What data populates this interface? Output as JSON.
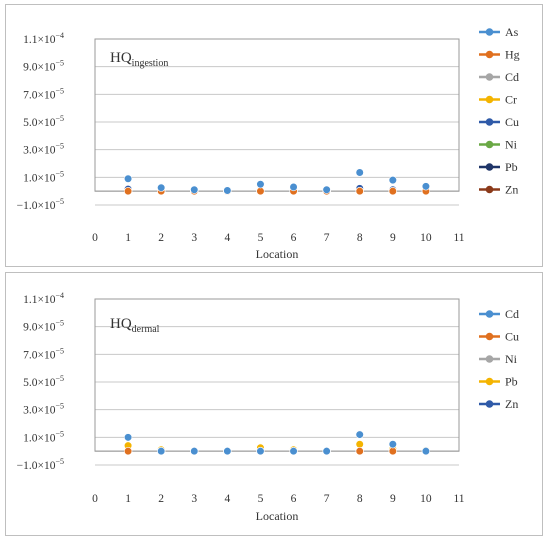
{
  "chart_data": [
    {
      "type": "scatter",
      "annotation": {
        "main": "HQ",
        "sub": "ingestion"
      },
      "xlabel": "Location",
      "ylabel": "",
      "xlim": [
        0,
        11
      ],
      "ylim": [
        -1e-05,
        0.00011
      ],
      "x_ticks": [
        "0",
        "1",
        "2",
        "3",
        "4",
        "5",
        "6",
        "7",
        "8",
        "9",
        "10",
        "11"
      ],
      "y_ticks": [
        {
          "value": 0.00011,
          "mant": "1.1",
          "exp": "−4"
        },
        {
          "value": 9e-05,
          "mant": "9.0",
          "exp": "−5"
        },
        {
          "value": 7e-05,
          "mant": "7.0",
          "exp": "−5"
        },
        {
          "value": 5e-05,
          "mant": "5.0",
          "exp": "−5"
        },
        {
          "value": 3e-05,
          "mant": "3.0",
          "exp": "−5"
        },
        {
          "value": 1e-05,
          "mant": "1.0",
          "exp": "−5"
        },
        {
          "value": -1e-05,
          "mant": "−1.0",
          "exp": "−5"
        }
      ],
      "tick_unit": "×10",
      "grid": true,
      "legend_position": "right",
      "series": [
        {
          "name": "As",
          "color": "#4a8fd0",
          "points": [
            [
              1,
              9e-06
            ],
            [
              2,
              2.5e-06
            ],
            [
              3,
              1e-06
            ],
            [
              4,
              5e-07
            ],
            [
              5,
              5e-06
            ],
            [
              6,
              3e-06
            ],
            [
              7,
              1e-06
            ],
            [
              8,
              1.35e-05
            ],
            [
              9,
              8e-06
            ],
            [
              10,
              3.5e-06
            ]
          ]
        },
        {
          "name": "Hg",
          "color": "#e0701f",
          "points": [
            [
              1,
              0
            ],
            [
              2,
              0
            ],
            [
              3,
              0
            ],
            [
              4,
              0
            ],
            [
              5,
              0
            ],
            [
              6,
              0
            ],
            [
              7,
              0
            ],
            [
              8,
              0
            ],
            [
              9,
              0
            ],
            [
              10,
              0
            ]
          ]
        },
        {
          "name": "Cd",
          "color": "#a6a6a6",
          "points": [
            [
              1,
              0
            ],
            [
              2,
              0
            ],
            [
              3,
              0
            ],
            [
              4,
              0
            ],
            [
              5,
              0
            ],
            [
              6,
              0
            ],
            [
              7,
              0
            ],
            [
              8,
              0
            ],
            [
              9,
              0
            ],
            [
              10,
              0
            ]
          ]
        },
        {
          "name": "Cr",
          "color": "#f4b400",
          "points": [
            [
              1,
              0
            ],
            [
              2,
              0
            ],
            [
              3,
              0
            ],
            [
              4,
              0
            ],
            [
              5,
              0
            ],
            [
              6,
              0
            ],
            [
              7,
              0
            ],
            [
              8,
              0
            ],
            [
              9,
              0
            ],
            [
              10,
              0
            ]
          ]
        },
        {
          "name": "Cu",
          "color": "#2f5aa8",
          "points": [
            [
              1,
              1.5e-06
            ],
            [
              2,
              3e-07
            ],
            [
              3,
              0
            ],
            [
              4,
              0
            ],
            [
              5,
              5e-07
            ],
            [
              6,
              5e-07
            ],
            [
              7,
              0
            ],
            [
              8,
              2e-06
            ],
            [
              9,
              1e-06
            ],
            [
              10,
              3e-07
            ]
          ]
        },
        {
          "name": "Ni",
          "color": "#6aa845",
          "points": [
            [
              1,
              0
            ],
            [
              2,
              0
            ],
            [
              3,
              0
            ],
            [
              4,
              0
            ],
            [
              5,
              0
            ],
            [
              6,
              0
            ],
            [
              7,
              0
            ],
            [
              8,
              0
            ],
            [
              9,
              0
            ],
            [
              10,
              0
            ]
          ]
        },
        {
          "name": "Pb",
          "color": "#1f3568",
          "points": [
            [
              1,
              5e-07
            ],
            [
              2,
              0
            ],
            [
              3,
              0
            ],
            [
              4,
              0
            ],
            [
              5,
              0
            ],
            [
              6,
              0
            ],
            [
              7,
              0
            ],
            [
              8,
              5e-07
            ],
            [
              9,
              0
            ],
            [
              10,
              0
            ]
          ]
        },
        {
          "name": "Zn",
          "color": "#8b3a1a",
          "points": [
            [
              1,
              0
            ],
            [
              2,
              0
            ],
            [
              3,
              0
            ],
            [
              4,
              0
            ],
            [
              5,
              0
            ],
            [
              6,
              0
            ],
            [
              7,
              0
            ],
            [
              8,
              0
            ],
            [
              9,
              0
            ],
            [
              10,
              0
            ]
          ]
        }
      ]
    },
    {
      "type": "scatter",
      "annotation": {
        "main": "HQ",
        "sub": "dermal"
      },
      "xlabel": "Location",
      "ylabel": "",
      "xlim": [
        0,
        11
      ],
      "ylim": [
        -1e-05,
        0.00011
      ],
      "x_ticks": [
        "0",
        "1",
        "2",
        "3",
        "4",
        "5",
        "6",
        "7",
        "8",
        "9",
        "10",
        "11"
      ],
      "y_ticks": [
        {
          "value": 0.00011,
          "mant": "1.1",
          "exp": "−4"
        },
        {
          "value": 9e-05,
          "mant": "9.0",
          "exp": "−5"
        },
        {
          "value": 7e-05,
          "mant": "7.0",
          "exp": "−5"
        },
        {
          "value": 5e-05,
          "mant": "5.0",
          "exp": "−5"
        },
        {
          "value": 3e-05,
          "mant": "3.0",
          "exp": "−5"
        },
        {
          "value": 1e-05,
          "mant": "1.0",
          "exp": "−5"
        },
        {
          "value": -1e-05,
          "mant": "−1.0",
          "exp": "−5"
        }
      ],
      "tick_unit": "×10",
      "grid": true,
      "legend_position": "right",
      "series": [
        {
          "name": "Cd",
          "color": "#4a8fd0",
          "points": [
            [
              1,
              1e-05
            ],
            [
              2,
              0
            ],
            [
              3,
              0
            ],
            [
              4,
              0
            ],
            [
              5,
              0
            ],
            [
              6,
              0
            ],
            [
              7,
              0
            ],
            [
              8,
              1.2e-05
            ],
            [
              9,
              5e-06
            ],
            [
              10,
              0
            ]
          ]
        },
        {
          "name": "Cu",
          "color": "#e0701f",
          "points": [
            [
              1,
              0
            ],
            [
              2,
              0
            ],
            [
              3,
              0
            ],
            [
              4,
              0
            ],
            [
              5,
              0
            ],
            [
              6,
              0
            ],
            [
              7,
              0
            ],
            [
              8,
              0
            ],
            [
              9,
              0
            ],
            [
              10,
              0
            ]
          ]
        },
        {
          "name": "Ni",
          "color": "#a6a6a6",
          "points": [
            [
              1,
              0
            ],
            [
              2,
              0
            ],
            [
              3,
              0
            ],
            [
              4,
              0
            ],
            [
              5,
              0
            ],
            [
              6,
              0
            ],
            [
              7,
              0
            ],
            [
              8,
              0
            ],
            [
              9,
              0
            ],
            [
              10,
              0
            ]
          ]
        },
        {
          "name": "Pb",
          "color": "#f4b400",
          "points": [
            [
              1,
              4e-06
            ],
            [
              2,
              1e-06
            ],
            [
              3,
              0
            ],
            [
              4,
              0
            ],
            [
              5,
              2.5e-06
            ],
            [
              6,
              1e-06
            ],
            [
              7,
              0
            ],
            [
              8,
              5e-06
            ],
            [
              9,
              1.5e-06
            ],
            [
              10,
              5e-07
            ]
          ]
        },
        {
          "name": "Zn",
          "color": "#2f5aa8",
          "points": [
            [
              1,
              0
            ],
            [
              2,
              0
            ],
            [
              3,
              0
            ],
            [
              4,
              0
            ],
            [
              5,
              0
            ],
            [
              6,
              0
            ],
            [
              7,
              0
            ],
            [
              8,
              0
            ],
            [
              9,
              0
            ],
            [
              10,
              0
            ]
          ]
        }
      ]
    }
  ]
}
